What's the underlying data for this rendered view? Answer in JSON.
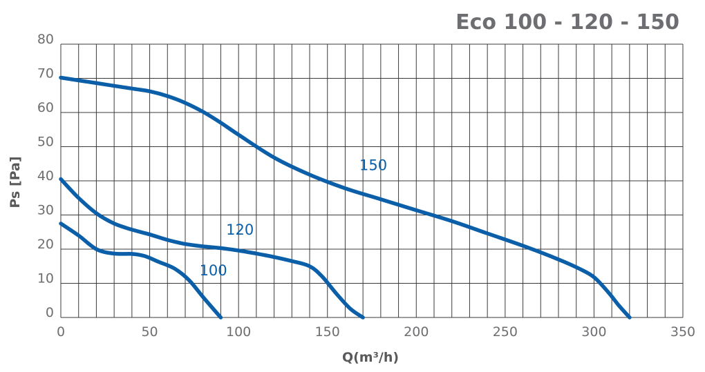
{
  "chart_data": {
    "type": "line",
    "title": "Eco 100 - 120 - 150",
    "xlabel": "Q(m³/h)",
    "ylabel": "Ps [Pa]",
    "xlim": [
      0,
      350
    ],
    "ylim": [
      0,
      80
    ],
    "x_ticks": [
      0,
      50,
      100,
      150,
      200,
      250,
      300,
      350
    ],
    "y_ticks": [
      0,
      10,
      20,
      30,
      40,
      50,
      60,
      70,
      80
    ],
    "grid": true,
    "line_color": "#0b5ea8",
    "series": [
      {
        "name": "100",
        "points": [
          [
            0,
            27.5
          ],
          [
            10,
            24
          ],
          [
            20,
            20
          ],
          [
            30,
            18.7
          ],
          [
            40,
            18.6
          ],
          [
            47,
            18
          ],
          [
            55,
            16.3
          ],
          [
            64,
            14.3
          ],
          [
            72,
            11
          ],
          [
            80,
            6
          ],
          [
            90,
            0
          ]
        ]
      },
      {
        "name": "120",
        "points": [
          [
            0,
            40.5
          ],
          [
            10,
            35
          ],
          [
            20,
            30.5
          ],
          [
            30,
            27.5
          ],
          [
            40,
            25.7
          ],
          [
            50,
            24.3
          ],
          [
            60,
            22.7
          ],
          [
            70,
            21.5
          ],
          [
            80,
            20.8
          ],
          [
            90,
            20.3
          ],
          [
            100,
            19.6
          ],
          [
            110,
            18.7
          ],
          [
            120,
            17.7
          ],
          [
            130,
            16.5
          ],
          [
            140,
            15
          ],
          [
            147,
            12
          ],
          [
            155,
            7
          ],
          [
            163,
            2.5
          ],
          [
            170,
            0
          ]
        ]
      },
      {
        "name": "150",
        "points": [
          [
            0,
            70.2
          ],
          [
            20,
            68.6
          ],
          [
            40,
            67
          ],
          [
            50,
            66.2
          ],
          [
            60,
            64.8
          ],
          [
            70,
            62.8
          ],
          [
            80,
            60.2
          ],
          [
            90,
            57
          ],
          [
            100,
            53.5
          ],
          [
            120,
            46.8
          ],
          [
            140,
            41.8
          ],
          [
            160,
            37.8
          ],
          [
            180,
            34.6
          ],
          [
            200,
            31.4
          ],
          [
            220,
            28.2
          ],
          [
            240,
            24.6
          ],
          [
            260,
            21
          ],
          [
            280,
            17
          ],
          [
            292,
            14.2
          ],
          [
            300,
            11.8
          ],
          [
            308,
            7.4
          ],
          [
            314,
            3.5
          ],
          [
            320,
            0
          ]
        ]
      }
    ],
    "series_label_positions": [
      [
        78,
        12.3
      ],
      [
        93,
        24.2
      ],
      [
        168,
        43.1
      ]
    ]
  }
}
